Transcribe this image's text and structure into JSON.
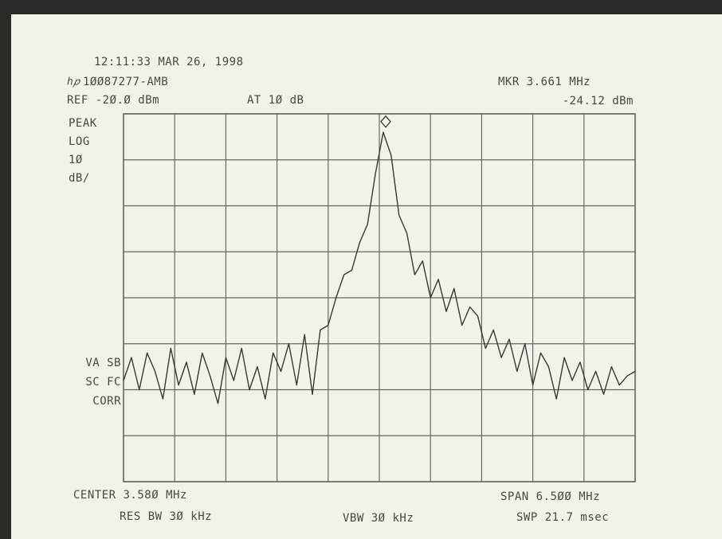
{
  "chart_data": {
    "type": "line",
    "timestamp": "12:11:33 MAR 26, 1998",
    "instrument_id": "1ØØ87277-AMB",
    "ref_level": "REF -2Ø.Ø dBm",
    "attenuation": "AT 1Ø dB",
    "marker_label": "MKR 3.661 MHz",
    "marker_value_label": "-24.12 dBm",
    "marker": {
      "x": 3.661,
      "y": -24.12
    },
    "left_labels_top": [
      "PEAK",
      "LOG",
      "1Ø",
      "dB/"
    ],
    "left_labels_bottom": [
      "VA SB",
      "SC FC",
      "CORR"
    ],
    "center_label": "CENTER 3.58Ø MHz",
    "span_label": "SPAN 6.5ØØ MHz",
    "rbw_label": "RES BW 3Ø kHz",
    "vbw_label": "VBW 3Ø kHz",
    "sweep_label": "SWP 21.7 msec",
    "color": "#3a3835",
    "grid": true,
    "xlim": [
      0.33,
      6.83
    ],
    "ylim": [
      -100,
      -20
    ],
    "xticks": [
      0.33,
      0.98,
      1.63,
      2.28,
      2.93,
      3.58,
      4.23,
      4.88,
      5.53,
      6.18,
      6.83
    ],
    "yticks": [
      -100,
      -90,
      -80,
      -70,
      -60,
      -50,
      -40,
      -30,
      -20
    ],
    "x": [
      0.33,
      0.43,
      0.53,
      0.63,
      0.73,
      0.83,
      0.93,
      1.03,
      1.13,
      1.23,
      1.33,
      1.43,
      1.53,
      1.63,
      1.73,
      1.83,
      1.93,
      2.03,
      2.13,
      2.23,
      2.33,
      2.43,
      2.53,
      2.63,
      2.73,
      2.83,
      2.93,
      3.03,
      3.13,
      3.23,
      3.33,
      3.43,
      3.53,
      3.63,
      3.73,
      3.83,
      3.93,
      4.03,
      4.13,
      4.23,
      4.33,
      4.43,
      4.53,
      4.63,
      4.73,
      4.83,
      4.93,
      5.03,
      5.13,
      5.23,
      5.33,
      5.43,
      5.53,
      5.63,
      5.73,
      5.83,
      5.93,
      6.03,
      6.13,
      6.23,
      6.33,
      6.43,
      6.53,
      6.63,
      6.73,
      6.83
    ],
    "values": [
      -78,
      -73,
      -80,
      -72,
      -76,
      -82,
      -71,
      -79,
      -74,
      -81,
      -72,
      -77,
      -83,
      -73,
      -78,
      -71,
      -80,
      -75,
      -82,
      -72,
      -76,
      -70,
      -79,
      -68,
      -81,
      -67,
      -66,
      -60,
      -55,
      -54,
      -48,
      -44,
      -33,
      -24,
      -29,
      -42,
      -46,
      -55,
      -52,
      -60,
      -56,
      -63,
      -58,
      -66,
      -62,
      -64,
      -71,
      -67,
      -73,
      -69,
      -76,
      -70,
      -79,
      -72,
      -75,
      -82,
      -73,
      -78,
      -74,
      -80,
      -76,
      -81,
      -75,
      -79,
      -77,
      -76
    ]
  }
}
